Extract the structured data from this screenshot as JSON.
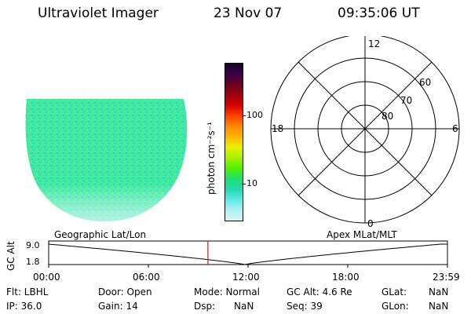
{
  "header": {
    "instrument": "Ultraviolet Imager",
    "date": "23 Nov 07",
    "time": "09:35:06 UT"
  },
  "colorbar": {
    "unit_label": "photon cm⁻²s⁻¹",
    "ticks": [
      "100",
      "10"
    ],
    "colors": [
      "#1a0030",
      "#3a0045",
      "#6a0020",
      "#a00010",
      "#d80000",
      "#ff4000",
      "#ff8a00",
      "#ffb400",
      "#e8f000",
      "#a8f000",
      "#50f000",
      "#20e070",
      "#20d8b0",
      "#60e8e8",
      "#b0f0f0",
      "#d8f4f4"
    ]
  },
  "polar_plot": {
    "mlt_labels": {
      "top": "12",
      "left": "18",
      "right": "6",
      "bottom": "0"
    },
    "lat_labels": [
      "60",
      "70",
      "80"
    ]
  },
  "timeline": {
    "y_axis_label": "GC Alt",
    "y_ticks": [
      "9.0",
      "1.8"
    ],
    "left_title": "Geographic Lat/Lon",
    "right_title": "Apex MLat/MLT",
    "x_ticks": [
      "00:00",
      "06:00",
      "12:00",
      "18:00",
      "23:59"
    ],
    "current_time_hours": 9.585
  },
  "info": {
    "row1": [
      "Flt: LBHL",
      "Door: Open",
      "Mode: Normal",
      "GC Alt: 4.6 Re",
      "GLat:",
      "NaN"
    ],
    "row2": [
      "IP: 36.0",
      "Gain: 14",
      "Dsp:",
      "NaN",
      "Seq: 39",
      "GLon:",
      "NaN"
    ]
  }
}
